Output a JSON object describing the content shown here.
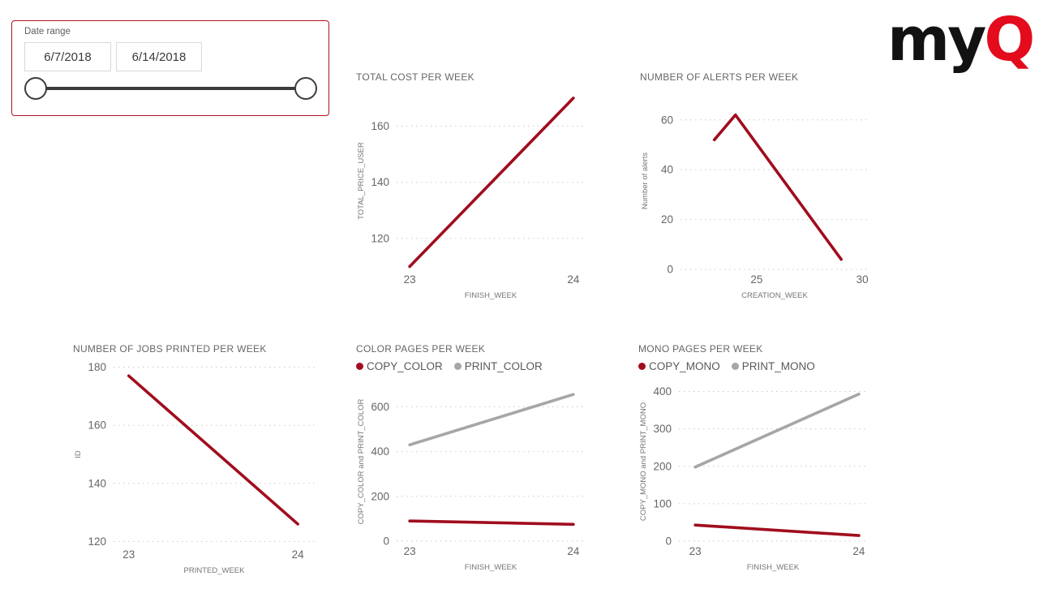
{
  "slicer": {
    "label": "Date range",
    "start_date": "6/7/2018",
    "end_date": "6/14/2018",
    "border_color": "#B01321",
    "slider_color": "#3C3C3C"
  },
  "logo": {
    "black_part": "my",
    "red_part": "Q",
    "black_color": "#121212",
    "red_color": "#E30B1C"
  },
  "palette": {
    "series_red": "#A00D1E",
    "series_gray": "#A6A6A6",
    "gridline": "#CFCAC6",
    "tick_text": "#666666",
    "axis_label_text": "#757575",
    "title_text": "#666666"
  },
  "chart_data": [
    {
      "type": "line",
      "title": "TOTAL COST PER WEEK",
      "xlabel": "FINISH_WEEK",
      "ylabel": "TOTAL_PRICE_USER",
      "xlim": [
        22.92,
        24.07
      ],
      "ylim": [
        109,
        172
      ],
      "xticks": [
        23,
        24
      ],
      "yticks": [
        120,
        140,
        160
      ],
      "grid": "dotted-horizontal",
      "legend_position": "none",
      "series": [
        {
          "name": "TOTAL_PRICE_USER",
          "color": "#A00D1E",
          "points": [
            [
              23,
              110
            ],
            [
              24,
              170
            ]
          ]
        }
      ]
    },
    {
      "type": "line",
      "title": "NUMBER OF ALERTS PER WEEK",
      "xlabel": "CREATION_WEEK",
      "ylabel": "Number of alerts",
      "xlim": [
        21.4,
        30.3
      ],
      "ylim": [
        0,
        71
      ],
      "xticks": [
        25,
        30
      ],
      "yticks": [
        0,
        20,
        40,
        60
      ],
      "grid": "dotted-horizontal",
      "legend_position": "none",
      "series": [
        {
          "name": "Number of alerts",
          "color": "#A00D1E",
          "points": [
            [
              23,
              52
            ],
            [
              24,
              62
            ],
            [
              29,
              4
            ]
          ]
        }
      ]
    },
    {
      "type": "line",
      "title": "NUMBER OF JOBS PRINTED PER WEEK",
      "xlabel": "PRINTED_WEEK",
      "ylabel": "ID",
      "xlim": [
        22.91,
        24.1
      ],
      "ylim": [
        119,
        181
      ],
      "xticks": [
        23,
        24
      ],
      "yticks": [
        120,
        140,
        160,
        180
      ],
      "grid": "dotted-horizontal",
      "legend_position": "none",
      "series": [
        {
          "name": "ID",
          "color": "#A00D1E",
          "points": [
            [
              23,
              177
            ],
            [
              24,
              126
            ]
          ]
        }
      ]
    },
    {
      "type": "line",
      "title": "COLOR PAGES PER WEEK",
      "xlabel": "FINISH_WEEK",
      "ylabel": "COPY_COLOR and PRINT_COLOR",
      "xlim": [
        22.92,
        24.07
      ],
      "ylim": [
        0,
        710
      ],
      "xticks": [
        23,
        24
      ],
      "yticks": [
        0,
        200,
        400,
        600
      ],
      "grid": "dotted-horizontal",
      "legend_position": "top",
      "series": [
        {
          "name": "COPY_COLOR",
          "color": "#A00D1E",
          "points": [
            [
              23,
              90
            ],
            [
              24,
              75
            ]
          ]
        },
        {
          "name": "PRINT_COLOR",
          "color": "#A6A6A6",
          "points": [
            [
              23,
              430
            ],
            [
              24,
              655
            ]
          ]
        }
      ]
    },
    {
      "type": "line",
      "title": "MONO PAGES PER WEEK",
      "xlabel": "FINISH_WEEK",
      "ylabel": "COPY_MONO and PRINT_MONO",
      "xlim": [
        22.9,
        24.05
      ],
      "ylim": [
        0,
        425
      ],
      "xticks": [
        23,
        24
      ],
      "yticks": [
        0,
        100,
        200,
        300,
        400
      ],
      "grid": "dotted-horizontal",
      "legend_position": "top",
      "series": [
        {
          "name": "COPY_MONO",
          "color": "#A00D1E",
          "points": [
            [
              23,
              43
            ],
            [
              24,
              15
            ]
          ]
        },
        {
          "name": "PRINT_MONO",
          "color": "#A6A6A6",
          "points": [
            [
              23,
              198
            ],
            [
              24,
              393
            ]
          ]
        }
      ]
    }
  ]
}
